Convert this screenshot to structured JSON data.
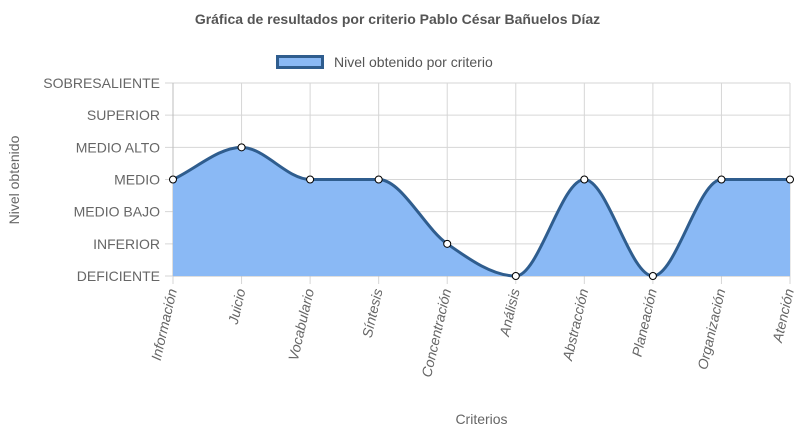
{
  "chart_data": {
    "type": "area",
    "title": "Gráfica de resultados por criterio Pablo César Bañuelos Díaz",
    "xlabel": "Criterios",
    "ylabel": "Nivel obtenido",
    "y_levels": [
      "DEFICIENTE",
      "INFERIOR",
      "MEDIO BAJO",
      "MEDIO",
      "MEDIO ALTO",
      "SUPERIOR",
      "SOBRESALIENTE"
    ],
    "ylim": [
      0,
      6
    ],
    "categories": [
      "Información",
      "Juicio",
      "Vocabulario",
      "Síntesis",
      "Concentración",
      "Análisis",
      "Abstracción",
      "Planeación",
      "Organización",
      "Atención"
    ],
    "series": [
      {
        "name": "Nivel obtenido por criterio",
        "values": [
          3,
          4,
          3,
          3,
          1,
          0,
          3,
          0,
          3,
          3
        ]
      }
    ],
    "legend": "top-center",
    "grid": true,
    "colors": {
      "fill": "#8ab9f5",
      "line": "#2f5d8e",
      "point_fill": "#ffffff",
      "point_stroke": "#000000",
      "grid": "#d6d6d6"
    }
  }
}
